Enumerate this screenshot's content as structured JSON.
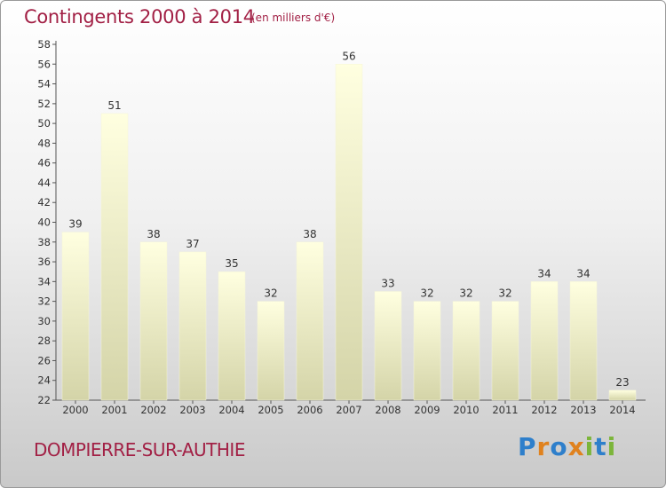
{
  "header": {
    "title": "Contingents 2000 à 2014",
    "subtitle": "(en milliers d'€)"
  },
  "footer": {
    "commune": "DOMPIERRE-SUR-AUTHIE",
    "logo_text": "Proxiti"
  },
  "colors": {
    "title": "#a22045",
    "bar_top": "#ffffe0",
    "bar_bottom": "#d4d4a8",
    "logo_letters": [
      "#2e7fcb",
      "#e0821e",
      "#2e7fcb",
      "#e0821e",
      "#7cb53a",
      "#2e7fcb",
      "#7cb53a"
    ]
  },
  "chart_data": {
    "type": "bar",
    "categories": [
      "2000",
      "2001",
      "2002",
      "2003",
      "2004",
      "2005",
      "2006",
      "2007",
      "2008",
      "2009",
      "2010",
      "2011",
      "2012",
      "2013",
      "2014"
    ],
    "values": [
      39,
      51,
      38,
      37,
      35,
      32,
      38,
      56,
      33,
      32,
      32,
      32,
      34,
      34,
      23
    ],
    "ylim": [
      22,
      58
    ],
    "yticks": [
      22,
      24,
      26,
      28,
      30,
      32,
      34,
      36,
      38,
      40,
      42,
      44,
      46,
      48,
      50,
      52,
      54,
      56,
      58
    ],
    "grid": false,
    "xlabel": "",
    "ylabel": ""
  }
}
